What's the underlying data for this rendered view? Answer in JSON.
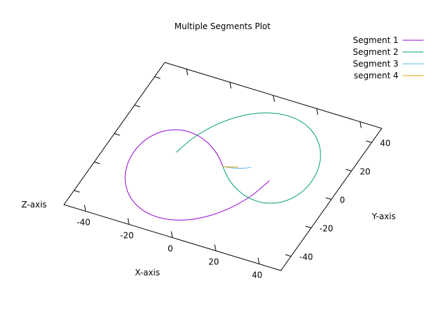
{
  "chart_data": {
    "type": "line",
    "title": "Multiple Segments Plot",
    "xlabel": "X-axis",
    "ylabel": "Y-axis",
    "zlabel": "Z-axis",
    "xlim": [
      -50,
      50
    ],
    "ylim": [
      -50,
      50
    ],
    "x_ticks": [
      -40,
      -20,
      0,
      20,
      40
    ],
    "y_ticks": [
      -40,
      -20,
      0,
      20,
      40
    ],
    "grid": false,
    "legend_position": "top-right",
    "series": [
      {
        "name": "Segment 1",
        "color": "#9400d3",
        "points": [
          [
            0,
            0
          ],
          [
            -5.32,
            5.98
          ],
          [
            -11.91,
            10.95
          ],
          [
            -19.06,
            13.76
          ],
          [
            -25.97,
            13.61
          ],
          [
            -31.79,
            10.19
          ],
          [
            -35.83,
            3.77
          ],
          [
            -37.62,
            -4.81
          ],
          [
            -36.99,
            -14.37
          ],
          [
            -34.03,
            -23.69
          ],
          [
            -29.0,
            -31.69
          ],
          [
            -22.37,
            -37.47
          ],
          [
            -14.72,
            -40.42
          ],
          [
            -6.67,
            -40.21
          ],
          [
            1.23,
            -36.84
          ],
          [
            8.4,
            -30.54
          ],
          [
            14.4,
            -21.8
          ],
          [
            18.84,
            -11.31
          ],
          [
            21.47,
            0
          ]
        ]
      },
      {
        "name": "Segment 2",
        "color": "#009e73",
        "points": [
          [
            0,
            0
          ],
          [
            5.32,
            -5.98
          ],
          [
            11.91,
            -10.95
          ],
          [
            19.06,
            -13.76
          ],
          [
            25.97,
            -13.61
          ],
          [
            31.79,
            -10.19
          ],
          [
            35.83,
            -3.77
          ],
          [
            37.62,
            4.81
          ],
          [
            36.99,
            14.37
          ],
          [
            34.03,
            23.69
          ],
          [
            29.0,
            31.69
          ],
          [
            22.37,
            37.47
          ],
          [
            14.72,
            40.42
          ],
          [
            6.67,
            40.21
          ],
          [
            -1.23,
            36.84
          ],
          [
            -8.4,
            30.54
          ],
          [
            -14.4,
            21.8
          ],
          [
            -18.84,
            11.31
          ],
          [
            -21.47,
            0
          ]
        ]
      },
      {
        "name": "Segment 3",
        "color": "#56b4e9",
        "points": [
          [
            0,
            0
          ],
          [
            3.0,
            0.6
          ],
          [
            5.6,
            1.4
          ],
          [
            8.2,
            2.6
          ],
          [
            11.0,
            4.4
          ]
        ]
      },
      {
        "name": "segment 4",
        "color": "#e69f00",
        "points": [
          [
            0,
            0
          ],
          [
            3.0,
            1.0
          ],
          [
            5.9,
            2.4
          ]
        ]
      }
    ]
  }
}
